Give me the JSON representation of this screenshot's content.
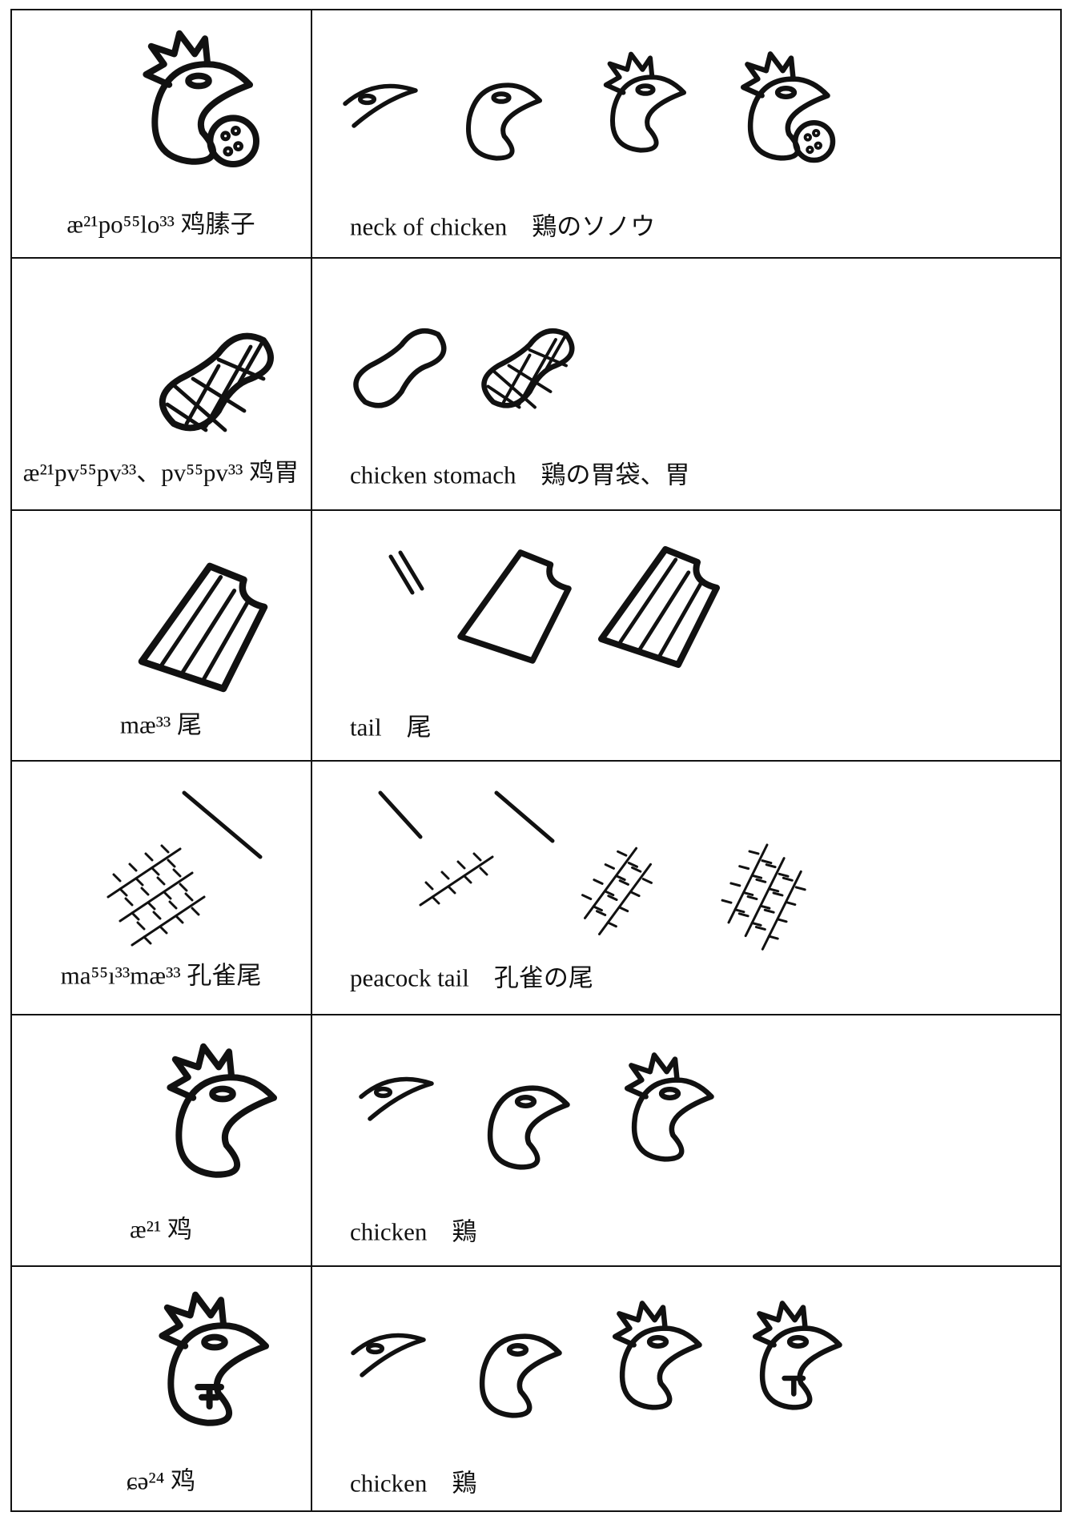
{
  "rows": [
    {
      "label": "æ²¹po⁵⁵lo³³ 鸡膆子",
      "gloss": "neck of chicken　鶏のソノウ"
    },
    {
      "label": "æ²¹pv⁵⁵pv³³、pv⁵⁵pv³³ 鸡胃",
      "gloss": "chicken stomach　鶏の胃袋、胃"
    },
    {
      "label": "mæ³³ 尾",
      "gloss": "tail　尾"
    },
    {
      "label": "ma⁵⁵ı³³mæ³³ 孔雀尾",
      "gloss": "peacock tail　孔雀の尾"
    },
    {
      "label": "æ²¹ 鸡",
      "gloss": "chicken　鶏"
    },
    {
      "label": "ɕə²⁴ 鸡",
      "gloss": "chicken　鶏"
    }
  ]
}
